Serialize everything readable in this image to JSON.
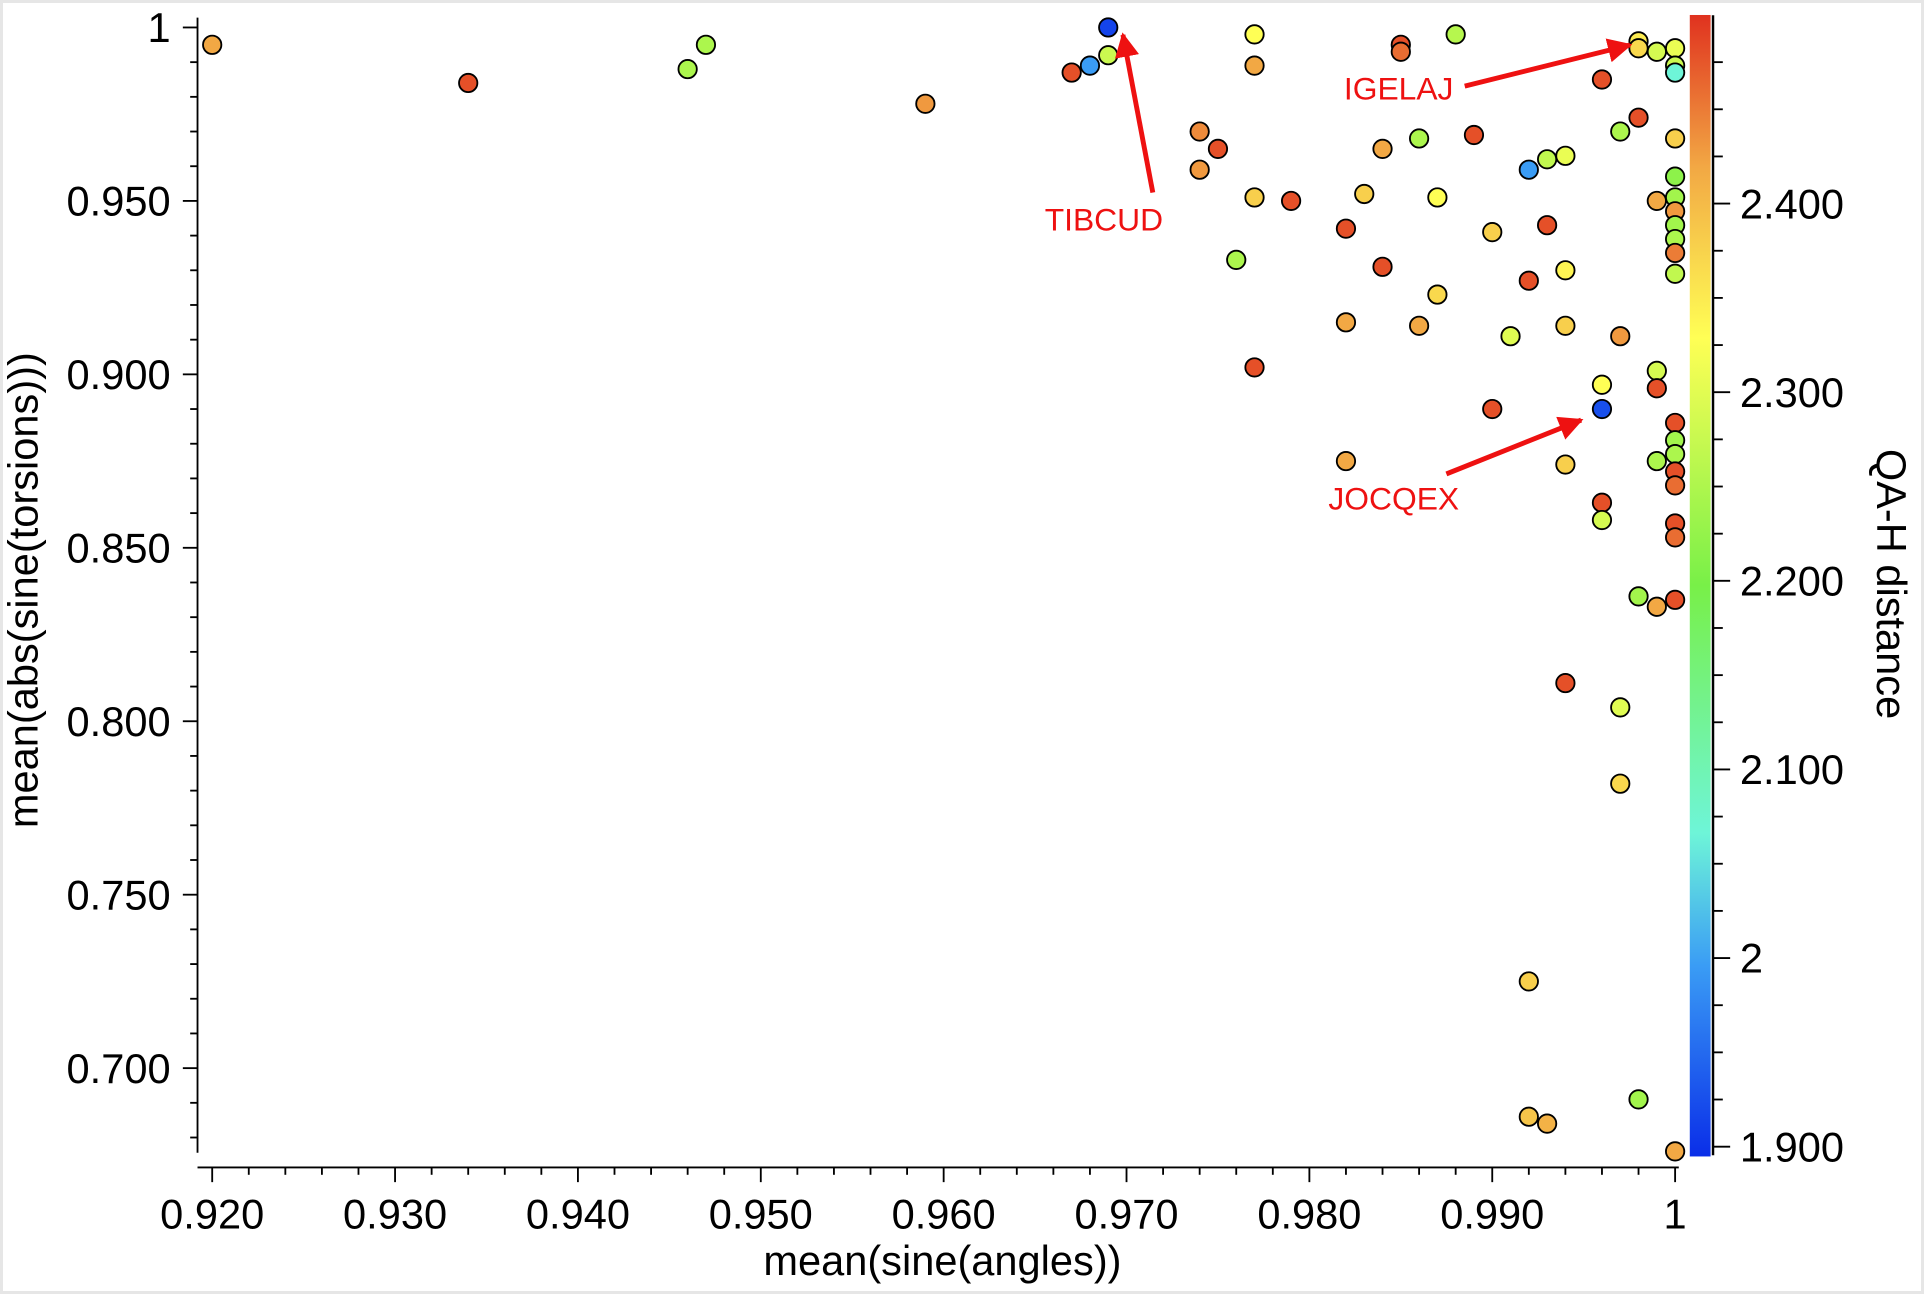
{
  "chart_data": {
    "type": "scatter",
    "title": "",
    "xlabel": "mean(sine(angles))",
    "ylabel": "mean(abs(sine(torsions)))",
    "colorbar_label": "QA-H distance",
    "xlim": [
      0.9192,
      1.0025
    ],
    "ylim": [
      0.671,
      1.003
    ],
    "clim": [
      1.9,
      2.5
    ],
    "x_ticks": [
      "0.920",
      "0.930",
      "0.940",
      "0.950",
      "0.960",
      "0.970",
      "0.980",
      "0.990",
      "1"
    ],
    "x_tick_values": [
      0.92,
      0.93,
      0.94,
      0.95,
      0.96,
      0.97,
      0.98,
      0.99,
      1.0
    ],
    "y_ticks": [
      "1",
      "0.950",
      "0.900",
      "0.850",
      "0.800",
      "0.750",
      "0.700"
    ],
    "y_tick_values": [
      1.0,
      0.95,
      0.9,
      0.85,
      0.8,
      0.75,
      0.7
    ],
    "colorbar_ticks": [
      "1.900",
      "2",
      "2.100",
      "2.200",
      "2.300",
      "2.400"
    ],
    "colorbar_tick_values": [
      1.9,
      2.0,
      2.1,
      2.2,
      2.3,
      2.4
    ],
    "colormap": [
      "#0a2ee8",
      "#3a9cf5",
      "#6ef5d8",
      "#78f048",
      "#ffff55",
      "#f2a844",
      "#e0321f"
    ],
    "grid": false,
    "points": [
      {
        "x": 0.92,
        "y": 0.995,
        "c": 2.42
      },
      {
        "x": 0.934,
        "y": 0.984,
        "c": 2.48
      },
      {
        "x": 0.946,
        "y": 0.988,
        "c": 2.25
      },
      {
        "x": 0.947,
        "y": 0.995,
        "c": 2.25
      },
      {
        "x": 0.959,
        "y": 0.978,
        "c": 2.43
      },
      {
        "x": 0.967,
        "y": 0.987,
        "c": 2.48
      },
      {
        "x": 0.968,
        "y": 0.989,
        "c": 2.0
      },
      {
        "x": 0.969,
        "y": 1.0,
        "c": 1.92
      },
      {
        "x": 0.969,
        "y": 0.992,
        "c": 2.28
      },
      {
        "x": 0.977,
        "y": 0.998,
        "c": 2.33
      },
      {
        "x": 0.977,
        "y": 0.989,
        "c": 2.42
      },
      {
        "x": 0.988,
        "y": 0.998,
        "c": 2.26
      },
      {
        "x": 0.985,
        "y": 0.995,
        "c": 2.48
      },
      {
        "x": 0.985,
        "y": 0.993,
        "c": 2.46
      },
      {
        "x": 0.974,
        "y": 0.97,
        "c": 2.44
      },
      {
        "x": 0.975,
        "y": 0.965,
        "c": 2.48
      },
      {
        "x": 0.974,
        "y": 0.959,
        "c": 2.43
      },
      {
        "x": 0.977,
        "y": 0.951,
        "c": 2.38
      },
      {
        "x": 0.979,
        "y": 0.95,
        "c": 2.48
      },
      {
        "x": 0.976,
        "y": 0.933,
        "c": 2.25
      },
      {
        "x": 0.977,
        "y": 0.902,
        "c": 2.48
      },
      {
        "x": 0.982,
        "y": 0.942,
        "c": 2.48
      },
      {
        "x": 0.983,
        "y": 0.952,
        "c": 2.38
      },
      {
        "x": 0.984,
        "y": 0.965,
        "c": 2.42
      },
      {
        "x": 0.986,
        "y": 0.968,
        "c": 2.25
      },
      {
        "x": 0.984,
        "y": 0.931,
        "c": 2.48
      },
      {
        "x": 0.987,
        "y": 0.951,
        "c": 2.33
      },
      {
        "x": 0.987,
        "y": 0.923,
        "c": 2.37
      },
      {
        "x": 0.982,
        "y": 0.915,
        "c": 2.42
      },
      {
        "x": 0.986,
        "y": 0.914,
        "c": 2.42
      },
      {
        "x": 0.982,
        "y": 0.875,
        "c": 2.42
      },
      {
        "x": 0.989,
        "y": 0.969,
        "c": 2.48
      },
      {
        "x": 0.99,
        "y": 0.941,
        "c": 2.38
      },
      {
        "x": 0.992,
        "y": 0.959,
        "c": 2.0
      },
      {
        "x": 0.993,
        "y": 0.962,
        "c": 2.27
      },
      {
        "x": 0.994,
        "y": 0.963,
        "c": 2.31
      },
      {
        "x": 0.993,
        "y": 0.943,
        "c": 2.48
      },
      {
        "x": 0.992,
        "y": 0.927,
        "c": 2.48
      },
      {
        "x": 0.994,
        "y": 0.93,
        "c": 2.34
      },
      {
        "x": 0.991,
        "y": 0.911,
        "c": 2.3
      },
      {
        "x": 0.994,
        "y": 0.914,
        "c": 2.38
      },
      {
        "x": 0.99,
        "y": 0.89,
        "c": 2.48
      },
      {
        "x": 0.996,
        "y": 0.985,
        "c": 2.48
      },
      {
        "x": 0.998,
        "y": 0.974,
        "c": 2.48
      },
      {
        "x": 0.997,
        "y": 0.97,
        "c": 2.25
      },
      {
        "x": 0.998,
        "y": 0.996,
        "c": 2.35
      },
      {
        "x": 0.998,
        "y": 0.994,
        "c": 2.37
      },
      {
        "x": 0.999,
        "y": 0.993,
        "c": 2.29
      },
      {
        "x": 1.0,
        "y": 0.994,
        "c": 2.31
      },
      {
        "x": 1.0,
        "y": 0.989,
        "c": 2.28
      },
      {
        "x": 1.0,
        "y": 0.987,
        "c": 2.07
      },
      {
        "x": 1.0,
        "y": 0.968,
        "c": 2.38
      },
      {
        "x": 1.0,
        "y": 0.957,
        "c": 2.22
      },
      {
        "x": 0.999,
        "y": 0.95,
        "c": 2.42
      },
      {
        "x": 1.0,
        "y": 0.951,
        "c": 2.24
      },
      {
        "x": 1.0,
        "y": 0.947,
        "c": 2.43
      },
      {
        "x": 1.0,
        "y": 0.943,
        "c": 2.24
      },
      {
        "x": 1.0,
        "y": 0.939,
        "c": 2.25
      },
      {
        "x": 1.0,
        "y": 0.935,
        "c": 2.45
      },
      {
        "x": 1.0,
        "y": 0.929,
        "c": 2.27
      },
      {
        "x": 0.997,
        "y": 0.911,
        "c": 2.43
      },
      {
        "x": 0.996,
        "y": 0.897,
        "c": 2.33
      },
      {
        "x": 0.996,
        "y": 0.89,
        "c": 1.93
      },
      {
        "x": 0.999,
        "y": 0.901,
        "c": 2.29
      },
      {
        "x": 0.999,
        "y": 0.896,
        "c": 2.48
      },
      {
        "x": 0.994,
        "y": 0.874,
        "c": 2.38
      },
      {
        "x": 0.999,
        "y": 0.875,
        "c": 2.25
      },
      {
        "x": 1.0,
        "y": 0.886,
        "c": 2.48
      },
      {
        "x": 1.0,
        "y": 0.881,
        "c": 2.24
      },
      {
        "x": 1.0,
        "y": 0.877,
        "c": 2.25
      },
      {
        "x": 1.0,
        "y": 0.872,
        "c": 2.48
      },
      {
        "x": 1.0,
        "y": 0.868,
        "c": 2.46
      },
      {
        "x": 0.996,
        "y": 0.863,
        "c": 2.48
      },
      {
        "x": 0.996,
        "y": 0.858,
        "c": 2.29
      },
      {
        "x": 1.0,
        "y": 0.857,
        "c": 2.48
      },
      {
        "x": 1.0,
        "y": 0.853,
        "c": 2.46
      },
      {
        "x": 0.998,
        "y": 0.836,
        "c": 2.24
      },
      {
        "x": 0.999,
        "y": 0.833,
        "c": 2.42
      },
      {
        "x": 1.0,
        "y": 0.835,
        "c": 2.48
      },
      {
        "x": 0.994,
        "y": 0.811,
        "c": 2.48
      },
      {
        "x": 0.997,
        "y": 0.804,
        "c": 2.3
      },
      {
        "x": 0.997,
        "y": 0.782,
        "c": 2.37
      },
      {
        "x": 0.992,
        "y": 0.725,
        "c": 2.38
      },
      {
        "x": 0.992,
        "y": 0.686,
        "c": 2.39
      },
      {
        "x": 0.993,
        "y": 0.684,
        "c": 2.41
      },
      {
        "x": 0.998,
        "y": 0.691,
        "c": 2.24
      },
      {
        "x": 1.0,
        "y": 0.676,
        "c": 2.42
      }
    ],
    "annotations": [
      {
        "label": "TIBCUD",
        "x": 0.969,
        "y": 1.0
      },
      {
        "label": "IGELAJ",
        "x": 0.998,
        "y": 0.996
      },
      {
        "label": "JOCQEX",
        "x": 0.996,
        "y": 0.89
      }
    ],
    "annotation_color": "#ee1111"
  }
}
